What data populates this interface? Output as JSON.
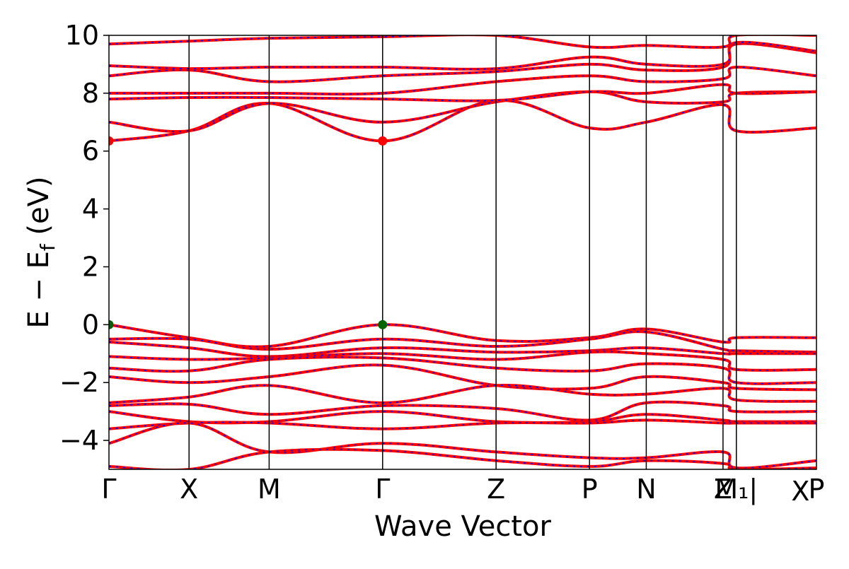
{
  "chart_data": {
    "type": "line",
    "title": "",
    "xlabel": "Wave Vector",
    "ylabel_main": "E − E",
    "ylabel_sub": "f",
    "ylabel_unit": " (eV)",
    "ylim": [
      -5,
      10
    ],
    "yticks": [
      -4,
      -2,
      0,
      2,
      4,
      6,
      8,
      10
    ],
    "ytick_labels": [
      "−4",
      "−2",
      "0",
      "2",
      "4",
      "6",
      "8",
      "10"
    ],
    "xlim": [
      0,
      10.6
    ],
    "kpath": [
      {
        "pos": 0.0,
        "label": "Γ"
      },
      {
        "pos": 1.2,
        "label": "X"
      },
      {
        "pos": 2.4,
        "label": "M"
      },
      {
        "pos": 4.1,
        "label": "Γ"
      },
      {
        "pos": 5.8,
        "label": "Z"
      },
      {
        "pos": 7.2,
        "label": "P"
      },
      {
        "pos": 8.05,
        "label": "N"
      },
      {
        "pos": 9.2,
        "label": "Z"
      },
      {
        "pos": 9.4,
        "label": "M₁|"
      },
      {
        "pos": 10.6,
        "label": "P"
      }
    ],
    "x_extra_label": {
      "pos": 10.0,
      "label": "X"
    },
    "band_colors": {
      "primary": "#ff0000",
      "secondary": "#0000ff"
    },
    "extrema_colors": {
      "cbm": "#ff0000",
      "vbm": "#006400"
    },
    "extrema": [
      {
        "name": "cbm",
        "x": 0.0,
        "y": 6.35
      },
      {
        "name": "cbm",
        "x": 4.1,
        "y": 6.35
      },
      {
        "name": "vbm",
        "x": 0.0,
        "y": 0.0
      },
      {
        "name": "vbm",
        "x": 4.1,
        "y": 0.0
      }
    ],
    "bands": [
      {
        "x": [
          0,
          1.2,
          2.4,
          4.1,
          5.8,
          7.2,
          8.05,
          9.2,
          9.4,
          10.6
        ],
        "y": [
          0.0,
          -0.45,
          -0.75,
          0.0,
          -0.55,
          -0.45,
          -0.15,
          -0.6,
          -0.45,
          -0.45
        ]
      },
      {
        "x": [
          0,
          1.2,
          2.4,
          4.1,
          5.8,
          7.2,
          8.05,
          9.2,
          9.4,
          10.6
        ],
        "y": [
          -0.5,
          -0.5,
          -0.85,
          -0.5,
          -0.75,
          -0.5,
          -0.25,
          -0.85,
          -0.9,
          -0.95
        ]
      },
      {
        "x": [
          0,
          1.2,
          2.4,
          4.1,
          5.8,
          7.2,
          8.05,
          9.2,
          9.4,
          10.6
        ],
        "y": [
          -0.6,
          -0.8,
          -1.1,
          -0.8,
          -0.95,
          -0.9,
          -0.8,
          -1.0,
          -1.0,
          -1.0
        ]
      },
      {
        "x": [
          0,
          1.2,
          2.4,
          4.1,
          5.8,
          7.2,
          8.05,
          9.2,
          9.4,
          10.6
        ],
        "y": [
          -1.1,
          -1.2,
          -1.15,
          -1.0,
          -1.2,
          -0.95,
          -1.0,
          -1.2,
          -1.55,
          -1.55
        ]
      },
      {
        "x": [
          0,
          1.2,
          2.4,
          4.1,
          5.8,
          7.2,
          8.05,
          9.2,
          9.4,
          10.6
        ],
        "y": [
          -1.5,
          -1.6,
          -1.2,
          -1.15,
          -1.5,
          -1.6,
          -1.35,
          -1.5,
          -2.0,
          -2.0
        ]
      },
      {
        "x": [
          0,
          1.2,
          2.4,
          4.1,
          5.8,
          7.2,
          8.05,
          9.2,
          9.4,
          10.6
        ],
        "y": [
          -1.8,
          -2.0,
          -1.8,
          -1.4,
          -2.1,
          -2.2,
          -1.8,
          -2.0,
          -2.2,
          -2.25
        ]
      },
      {
        "x": [
          0,
          1.2,
          2.4,
          4.1,
          5.8,
          7.2,
          8.05,
          9.2,
          9.4,
          10.6
        ],
        "y": [
          -2.7,
          -2.5,
          -2.1,
          -2.7,
          -2.1,
          -2.4,
          -2.4,
          -2.2,
          -2.6,
          -2.65
        ]
      },
      {
        "x": [
          0,
          1.2,
          2.4,
          4.1,
          5.8,
          7.2,
          8.05,
          9.2,
          9.4,
          10.6
        ],
        "y": [
          -2.8,
          -2.75,
          -3.1,
          -2.8,
          -2.9,
          -3.3,
          -2.7,
          -2.8,
          -3.0,
          -3.0
        ]
      },
      {
        "x": [
          0,
          1.2,
          2.4,
          4.1,
          5.8,
          7.2,
          8.05,
          9.2,
          9.4,
          10.6
        ],
        "y": [
          -3.0,
          -3.35,
          -3.35,
          -3.0,
          -3.35,
          -3.35,
          -3.1,
          -3.3,
          -3.35,
          -3.35
        ]
      },
      {
        "x": [
          0,
          1.2,
          2.4,
          4.1,
          5.8,
          7.2,
          8.05,
          9.2,
          9.4,
          10.6
        ],
        "y": [
          -3.6,
          -3.4,
          -3.4,
          -3.6,
          -3.4,
          -3.4,
          -3.3,
          -3.4,
          -3.4,
          -3.4
        ]
      },
      {
        "x": [
          0,
          1.2,
          2.4,
          4.1,
          5.8,
          7.2,
          8.05,
          9.2,
          9.4,
          10.6
        ],
        "y": [
          -4.1,
          -3.4,
          -4.4,
          -4.1,
          -4.4,
          -4.6,
          -4.6,
          -4.4,
          -4.95,
          -4.7
        ]
      },
      {
        "x": [
          0,
          1.2,
          2.4,
          4.1,
          5.8,
          7.2,
          8.05,
          9.2,
          9.4,
          10.6
        ],
        "y": [
          -4.9,
          -5.0,
          -4.4,
          -4.35,
          -4.7,
          -4.9,
          -4.7,
          -4.8,
          -5.0,
          -4.95
        ]
      },
      {
        "x": [
          0,
          1.2,
          2.4,
          4.1,
          5.8,
          7.2,
          8.05,
          9.2,
          9.4,
          10.6
        ],
        "y": [
          6.35,
          6.7,
          7.65,
          6.35,
          7.75,
          6.8,
          7.0,
          7.6,
          6.7,
          6.8
        ]
      },
      {
        "x": [
          0,
          1.2,
          2.4,
          4.1,
          5.8,
          7.2,
          8.05,
          9.2,
          9.4,
          10.6
        ],
        "y": [
          7.0,
          6.7,
          7.65,
          7.0,
          7.7,
          8.05,
          7.7,
          7.7,
          8.0,
          8.05
        ]
      },
      {
        "x": [
          0,
          1.2,
          2.4,
          4.1,
          5.8,
          7.2,
          8.05,
          9.2,
          9.4,
          10.6
        ],
        "y": [
          7.8,
          7.85,
          7.85,
          7.8,
          7.75,
          8.05,
          8.0,
          8.3,
          8.0,
          8.05
        ]
      },
      {
        "x": [
          0,
          1.2,
          2.4,
          4.1,
          5.8,
          7.2,
          8.05,
          9.2,
          9.4,
          10.6
        ],
        "y": [
          8.0,
          8.0,
          8.0,
          8.0,
          8.4,
          8.6,
          8.4,
          8.5,
          8.9,
          8.6
        ]
      },
      {
        "x": [
          0,
          1.2,
          2.4,
          4.1,
          5.8,
          7.2,
          8.05,
          9.2,
          9.4,
          10.6
        ],
        "y": [
          8.6,
          8.8,
          8.4,
          8.6,
          8.75,
          9.0,
          8.8,
          8.9,
          9.7,
          9.4
        ]
      },
      {
        "x": [
          0,
          1.2,
          2.4,
          4.1,
          5.8,
          7.2,
          8.05,
          9.2,
          9.4,
          10.6
        ],
        "y": [
          8.95,
          8.85,
          8.9,
          8.9,
          8.85,
          9.25,
          9.0,
          9.0,
          9.75,
          9.45
        ]
      },
      {
        "x": [
          0,
          1.2,
          2.4,
          4.1,
          5.8,
          7.2,
          8.05,
          9.2,
          9.4,
          10.6
        ],
        "y": [
          9.7,
          9.8,
          9.9,
          9.95,
          10.0,
          9.6,
          9.65,
          9.6,
          10.0,
          10.0
        ]
      }
    ]
  }
}
